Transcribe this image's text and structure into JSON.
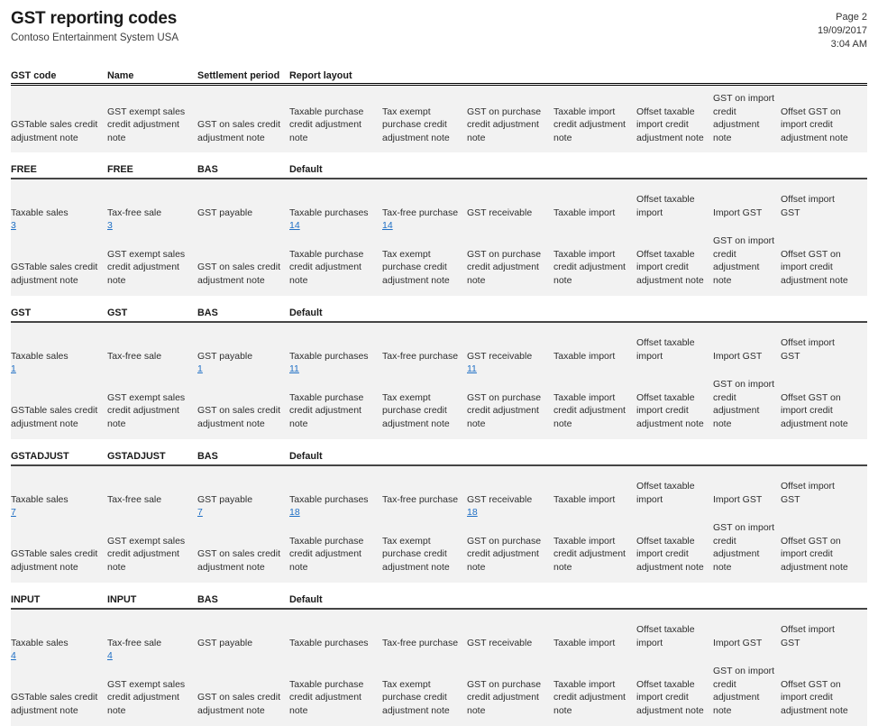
{
  "header": {
    "title": "GST reporting codes",
    "subtitle": "Contoso Entertainment System USA",
    "page": "Page 2",
    "date": "19/09/2017",
    "time": "3:04 AM"
  },
  "columns": [
    "GST code",
    "Name",
    "Settlement period",
    "Report layout"
  ],
  "colors": {
    "link": "#1f6fc5",
    "band": "#f2f2f2"
  },
  "sales_labels": [
    "Taxable sales",
    "Tax-free sale",
    "GST payable",
    "Taxable purchases",
    "Tax-free purchase",
    "GST receivable",
    "Taxable import",
    "Offset taxable import",
    "Import GST",
    "Offset import GST"
  ],
  "adjustment_labels": [
    "GSTable sales credit adjustment note",
    "GST exempt sales credit adjustment note",
    "GST on sales credit adjustment note",
    "Taxable purchase credit adjustment note",
    "Tax exempt purchase credit adjustment note",
    "GST on purchase credit adjustment note",
    "Taxable import credit adjustment note",
    "Offset taxable import credit adjustment note",
    "GST on import credit adjustment note",
    "Offset GST on import credit adjustment note"
  ],
  "sections": [
    {
      "code": "FREE",
      "name": "FREE",
      "settlement_period": "BAS",
      "report_layout": "Default",
      "links": [
        "3",
        "3",
        "",
        "14",
        "14",
        "",
        "",
        "",
        "",
        ""
      ]
    },
    {
      "code": "GST",
      "name": "GST",
      "settlement_period": "BAS",
      "report_layout": "Default",
      "links": [
        "1",
        "",
        "1",
        "11",
        "",
        "11",
        "",
        "",
        "",
        ""
      ]
    },
    {
      "code": "GSTADJUST",
      "name": "GSTADJUST",
      "settlement_period": "BAS",
      "report_layout": "Default",
      "links": [
        "7",
        "",
        "7",
        "18",
        "",
        "18",
        "",
        "",
        "",
        ""
      ]
    },
    {
      "code": "INPUT",
      "name": "INPUT",
      "settlement_period": "BAS",
      "report_layout": "Default",
      "links": [
        "4",
        "4",
        "",
        "",
        "",
        "",
        "",
        "",
        "",
        ""
      ]
    }
  ]
}
